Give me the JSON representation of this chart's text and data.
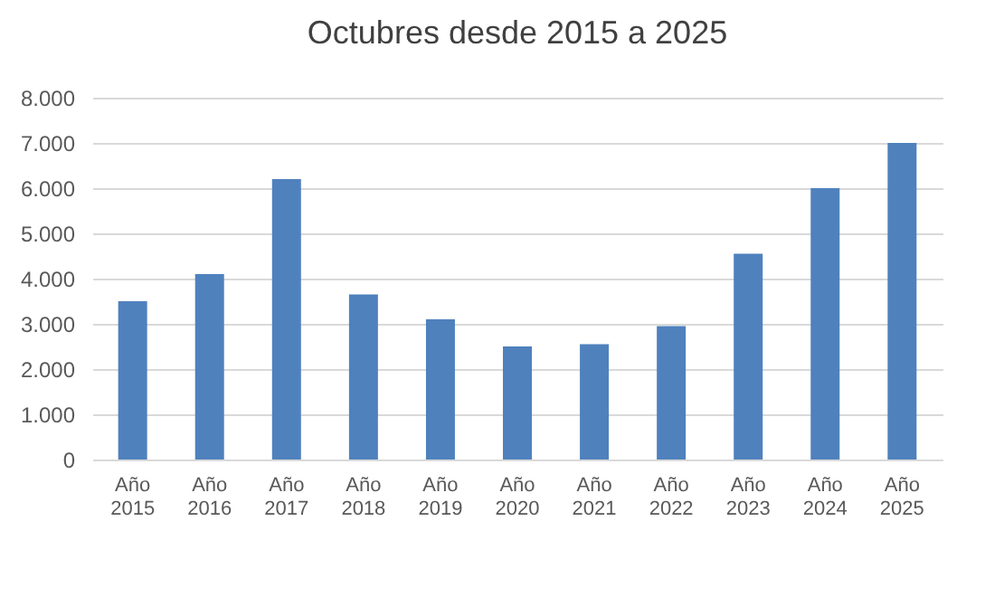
{
  "chart_data": {
    "type": "bar",
    "title": "Octubres desde 2015 a 2025",
    "categories": [
      "Año 2015",
      "Año 2016",
      "Año 2017",
      "Año 2018",
      "Año 2019",
      "Año 2020",
      "Año 2021",
      "Año 2022",
      "Año 2023",
      "Año 2024",
      "Año 2025"
    ],
    "values": [
      3500,
      4100,
      6200,
      3650,
      3100,
      2500,
      2550,
      2950,
      4550,
      6000,
      7000
    ],
    "color": "#4f81bd",
    "ylim": [
      0,
      8000
    ],
    "yticks": [
      {
        "value": 0,
        "label": "0"
      },
      {
        "value": 1000,
        "label": "1.000"
      },
      {
        "value": 2000,
        "label": "2.000"
      },
      {
        "value": 3000,
        "label": "3.000"
      },
      {
        "value": 4000,
        "label": "4.000"
      },
      {
        "value": 5000,
        "label": "5.000"
      },
      {
        "value": 6000,
        "label": "6.000"
      },
      {
        "value": 7000,
        "label": "7.000"
      },
      {
        "value": 8000,
        "label": "8.000"
      }
    ],
    "grid": "y"
  }
}
